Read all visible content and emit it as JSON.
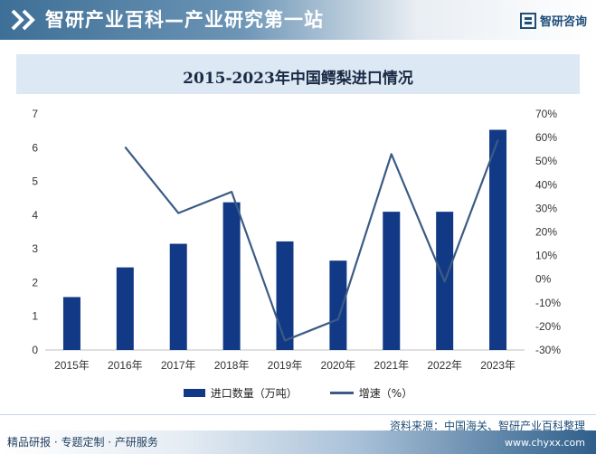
{
  "header": {
    "title": "智研产业百科—产业研究第一站",
    "brand": "智研咨询",
    "accent_color": "#1f4e79"
  },
  "chart_data": {
    "type": "bar",
    "title": "2015-2023年中国鳄梨进口情况",
    "categories": [
      "2015年",
      "2016年",
      "2017年",
      "2018年",
      "2019年",
      "2020年",
      "2021年",
      "2022年",
      "2023年"
    ],
    "series": [
      {
        "name": "进口数量（万吨）",
        "type": "bar",
        "axis": "left",
        "color": "#123985",
        "values": [
          1.57,
          2.45,
          3.15,
          4.38,
          3.22,
          2.65,
          4.1,
          4.1,
          6.53
        ]
      },
      {
        "name": "增速（%）",
        "type": "line",
        "axis": "right",
        "color": "#3b5b85",
        "values": [
          null,
          56,
          28,
          37,
          -26,
          -17,
          53,
          -1,
          59
        ]
      }
    ],
    "y_left": {
      "min": 0,
      "max": 7,
      "ticks": [
        "0",
        "1",
        "2",
        "3",
        "4",
        "5",
        "6",
        "7"
      ]
    },
    "y_right": {
      "min": -30,
      "max": 70,
      "ticks": [
        "-30%",
        "-20%",
        "-10%",
        "0%",
        "10%",
        "20%",
        "30%",
        "40%",
        "50%",
        "60%",
        "70%"
      ]
    },
    "grid": false,
    "legend_position": "bottom"
  },
  "footer": {
    "source": "资料来源：中国海关、智研产业百科整理",
    "left_text": "精品研报 · 专题定制 · 产研服务",
    "url": "www.chyxx.com"
  }
}
